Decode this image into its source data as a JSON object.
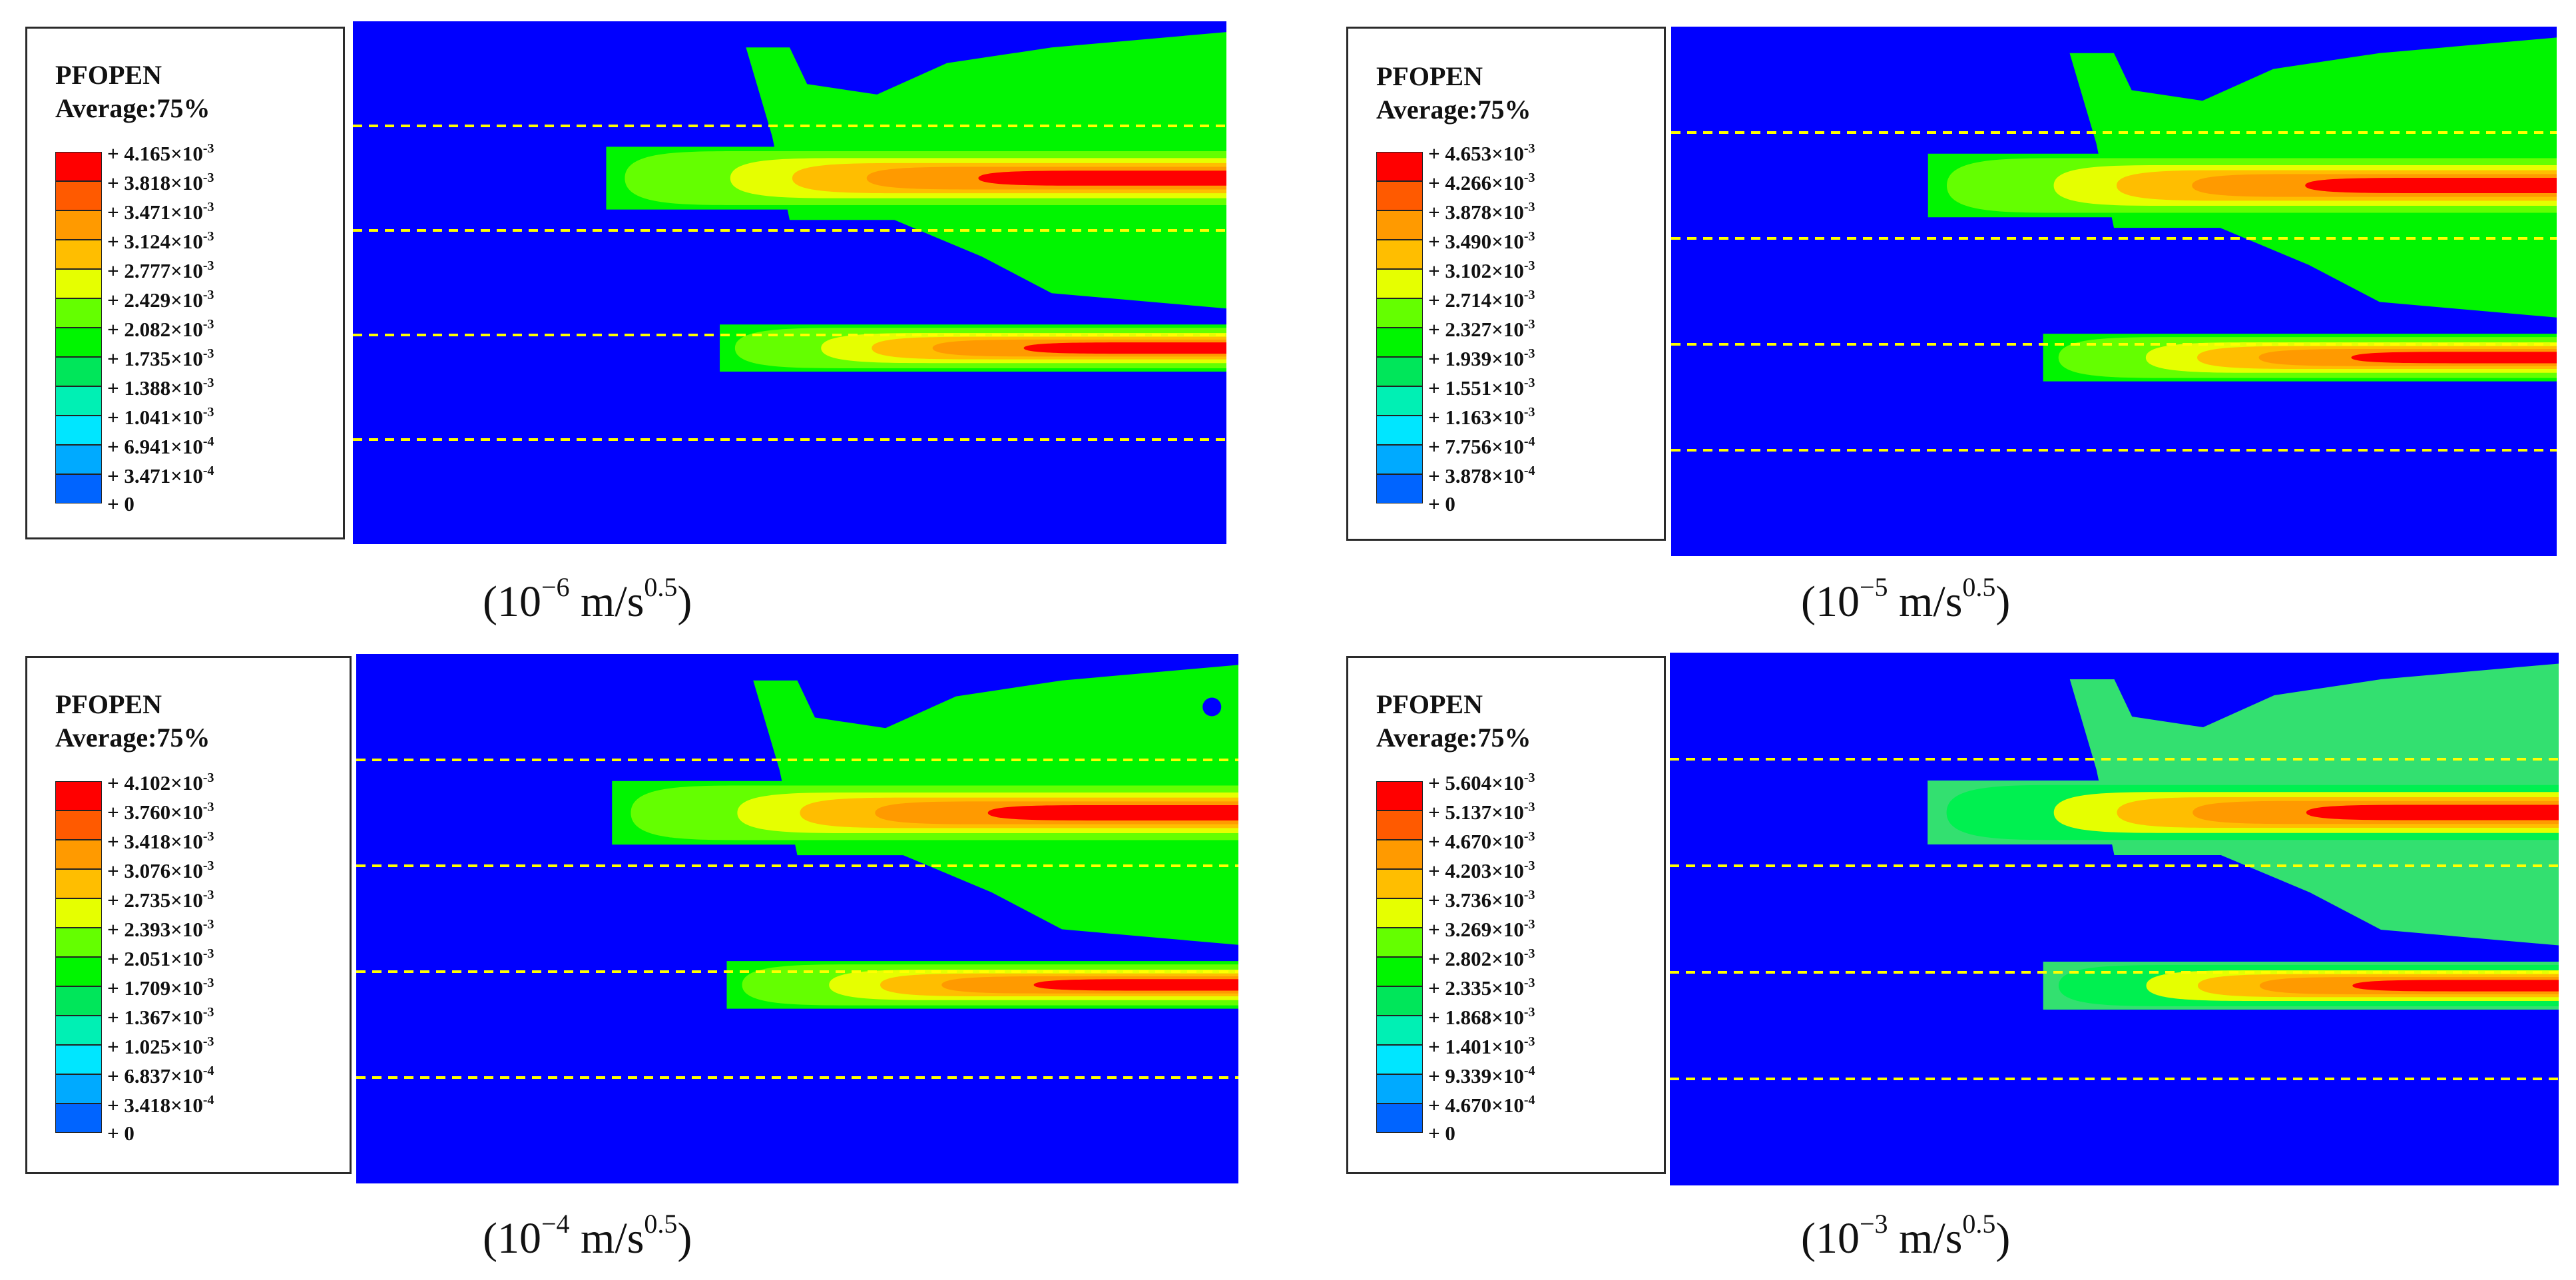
{
  "panels": [
    {
      "legend": {
        "title": "PFOPEN",
        "average": "Average:75%",
        "ticks": [
          "+ 4.165×10-3",
          "+ 3.818×10-3",
          "+ 3.471×10-3",
          "+ 3.124×10-3",
          "+ 2.777×10-3",
          "+ 2.429×10-3",
          "+ 2.082×10-3",
          "+ 1.735×10-3",
          "+ 1.388×10-3",
          "+ 1.041×10-3",
          "+ 6.941×10-4",
          "+ 3.471×10-4",
          "+ 0"
        ]
      },
      "caption": {
        "base": "(10",
        "exp": "−6",
        "unit": " m/s",
        "unit_exp": "0.5",
        "close": ")"
      },
      "has_inner_hole": false,
      "light_plume": false
    },
    {
      "legend": {
        "title": "PFOPEN",
        "average": "Average:75%",
        "ticks": [
          "+ 4.653×10-3",
          "+ 4.266×10-3",
          "+ 3.878×10-3",
          "+ 3.490×10-3",
          "+ 3.102×10-3",
          "+ 2.714×10-3",
          "+ 2.327×10-3",
          "+ 1.939×10-3",
          "+ 1.551×10-3",
          "+ 1.163×10-3",
          "+ 7.756×10-4",
          "+ 3.878×10-4",
          "+ 0"
        ]
      },
      "caption": {
        "base": "(10",
        "exp": "−5",
        "unit": " m/s",
        "unit_exp": "0.5",
        "close": ")"
      },
      "has_inner_hole": false,
      "light_plume": false
    },
    {
      "legend": {
        "title": "PFOPEN",
        "average": "Average:75%",
        "ticks": [
          "+ 4.102×10-3",
          "+ 3.760×10-3",
          "+ 3.418×10-3",
          "+ 3.076×10-3",
          "+ 2.735×10-3",
          "+ 2.393×10-3",
          "+ 2.051×10-3",
          "+ 1.709×10-3",
          "+ 1.367×10-3",
          "+ 1.025×10-3",
          "+ 6.837×10-4",
          "+ 3.418×10-4",
          "+ 0"
        ]
      },
      "caption": {
        "base": "(10",
        "exp": "−4",
        "unit": " m/s",
        "unit_exp": "0.5",
        "close": ")"
      },
      "has_inner_hole": true,
      "light_plume": false
    },
    {
      "legend": {
        "title": "PFOPEN",
        "average": "Average:75%",
        "ticks": [
          "+ 5.604×10-3",
          "+ 5.137×10-3",
          "+ 4.670×10-3",
          "+ 4.203×10-3",
          "+ 3.736×10-3",
          "+ 3.269×10-3",
          "+ 2.802×10-3",
          "+ 2.335×10-3",
          "+ 1.868×10-3",
          "+ 1.401×10-3",
          "+ 9.339×10-4",
          "+ 4.670×10-4",
          "+ 0"
        ]
      },
      "caption": {
        "base": "(10",
        "exp": "−3",
        "unit": " m/s",
        "unit_exp": "0.5",
        "close": ")"
      },
      "has_inner_hole": false,
      "light_plume": true
    }
  ],
  "colors": {
    "scale": [
      "#ff0000",
      "#ff5a00",
      "#ff9a00",
      "#ffbe00",
      "#e6ff00",
      "#64ff00",
      "#00f500",
      "#00e65a",
      "#00f0b4",
      "#00e6ff",
      "#00aaff",
      "#0064ff",
      "#0000ff"
    ],
    "background": "#0000ff",
    "dashed_line": "#ffff00"
  }
}
